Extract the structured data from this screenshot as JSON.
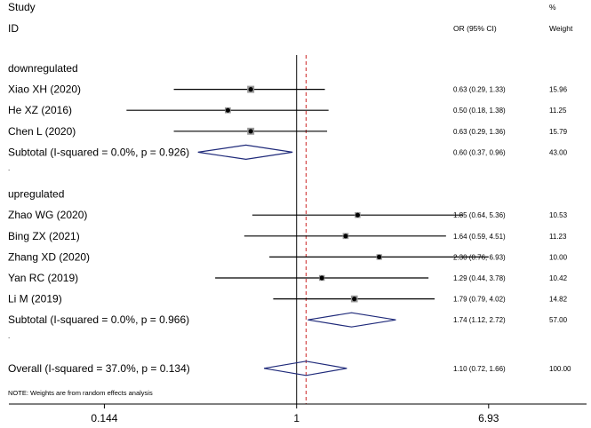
{
  "chart_data": {
    "type": "forest",
    "header": {
      "study_line1": "Study",
      "study_line2": "ID",
      "ci_label": "OR (95% CI)",
      "weight_line1": "%",
      "weight_line2": "Weight"
    },
    "axis": {
      "scale": "log",
      "range": [
        0.055,
        18.6
      ],
      "ticks": [
        {
          "value": 0.144,
          "label": "0.144"
        },
        {
          "value": 1,
          "label": "1"
        },
        {
          "value": 6.93,
          "label": "6.93"
        }
      ],
      "null_value": 1,
      "overall_line_value": 1.1
    },
    "groups": [
      {
        "label": "downregulated",
        "studies": [
          {
            "name": "Xiao XH (2020)",
            "or": 0.63,
            "lo": 0.29,
            "hi": 1.33,
            "ci_text": "0.63 (0.29, 1.33)",
            "weight": "15.96"
          },
          {
            "name": "He XZ (2016)",
            "or": 0.5,
            "lo": 0.18,
            "hi": 1.38,
            "ci_text": "0.50 (0.18, 1.38)",
            "weight": "11.25"
          },
          {
            "name": "Chen L (2020)",
            "or": 0.63,
            "lo": 0.29,
            "hi": 1.36,
            "ci_text": "0.63 (0.29, 1.36)",
            "weight": "15.79"
          }
        ],
        "subtotal": {
          "name": "Subtotal  (I-squared = 0.0%, p = 0.926)",
          "or": 0.6,
          "lo": 0.37,
          "hi": 0.96,
          "ci_text": "0.60 (0.37, 0.96)",
          "weight": "43.00"
        }
      },
      {
        "label": "upregulated",
        "studies": [
          {
            "name": "Zhao WG (2020)",
            "or": 1.85,
            "lo": 0.64,
            "hi": 5.36,
            "ci_text": "1.85 (0.64, 5.36)",
            "weight": "10.53"
          },
          {
            "name": "Bing ZX (2021)",
            "or": 1.64,
            "lo": 0.59,
            "hi": 4.51,
            "ci_text": "1.64 (0.59, 4.51)",
            "weight": "11.23"
          },
          {
            "name": "Zhang XD (2020)",
            "or": 2.3,
            "lo": 0.76,
            "hi": 6.93,
            "ci_text": "2.30 (0.76, 6.93)",
            "weight": "10.00"
          },
          {
            "name": "Yan RC (2019)",
            "or": 1.29,
            "lo": 0.44,
            "hi": 3.78,
            "ci_text": "1.29 (0.44, 3.78)",
            "weight": "10.42"
          },
          {
            "name": "Li M (2019)",
            "or": 1.79,
            "lo": 0.79,
            "hi": 4.02,
            "ci_text": "1.79 (0.79, 4.02)",
            "weight": "14.82"
          }
        ],
        "subtotal": {
          "name": "Subtotal  (I-squared = 0.0%, p = 0.966)",
          "or": 1.74,
          "lo": 1.12,
          "hi": 2.72,
          "ci_text": "1.74 (1.12, 2.72)",
          "weight": "57.00"
        }
      }
    ],
    "overall": {
      "name": "Overall  (I-squared = 37.0%, p = 0.134)",
      "or": 1.1,
      "lo": 0.72,
      "hi": 1.66,
      "ci_text": "1.10 (0.72, 1.66)",
      "weight": "100.00"
    },
    "note": "NOTE: Weights are from random effects analysis",
    "separator_mark": ".",
    "colors": {
      "text": "#000000",
      "diamond": "#1f2a7a",
      "overall_line": "#cc2222",
      "marker": "#000000",
      "weight_box": "#9a9a9a"
    }
  }
}
